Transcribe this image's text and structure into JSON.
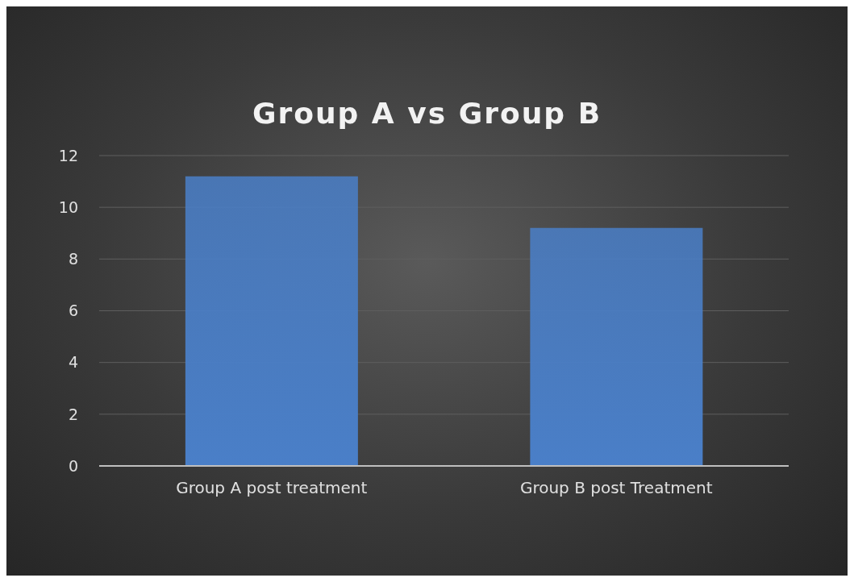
{
  "chart_data": {
    "type": "bar",
    "title": "Group A vs Group B",
    "categories": [
      "Group A post treatment",
      "Group B post Treatment"
    ],
    "values": [
      11.2,
      9.2
    ],
    "color": "#4a7fc8",
    "ylim": [
      0,
      12
    ],
    "yticks": [
      0,
      2,
      4,
      6,
      8,
      10,
      12
    ],
    "grid": "y"
  }
}
